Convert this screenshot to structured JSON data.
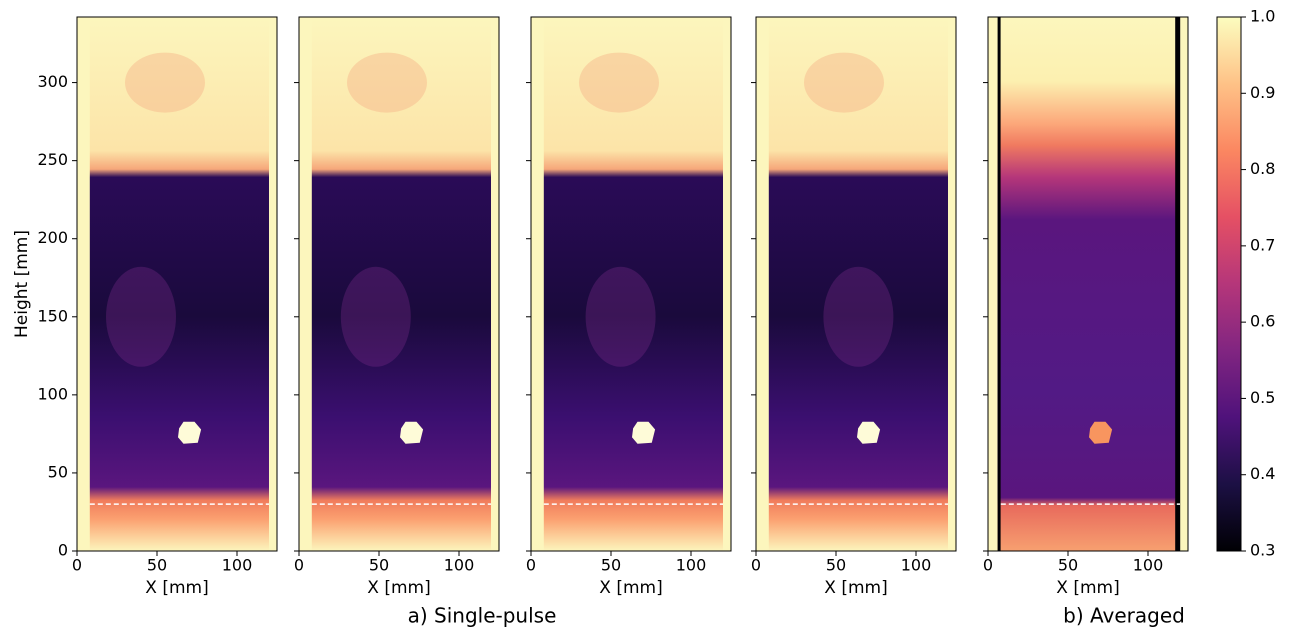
{
  "chart_data": [
    {
      "type": "heatmap",
      "ylabel": "Height [mm]",
      "xlabel": "X [mm]",
      "xlim": [
        0,
        125
      ],
      "xticks": [
        0,
        50,
        100
      ],
      "ylim": [
        0,
        342
      ],
      "yticks": [
        0,
        50,
        100,
        150,
        200,
        250,
        300
      ],
      "hline": 30
    },
    {
      "type": "heatmap",
      "xlabel": "X [mm]",
      "xlim": [
        0,
        125
      ],
      "xticks": [
        0,
        50,
        100
      ],
      "ylim": [
        0,
        342
      ],
      "hline": 30
    },
    {
      "type": "heatmap",
      "xlabel": "X [mm]",
      "xlim": [
        0,
        125
      ],
      "xticks": [
        0,
        50,
        100
      ],
      "ylim": [
        0,
        342
      ],
      "hline": 30
    },
    {
      "type": "heatmap",
      "xlabel": "X [mm]",
      "xlim": [
        0,
        125
      ],
      "xticks": [
        0,
        50,
        100
      ],
      "ylim": [
        0,
        342
      ],
      "hline": 30
    },
    {
      "type": "heatmap-averaged",
      "xlabel": "X [mm]",
      "xlim": [
        0,
        125
      ],
      "xticks": [
        0,
        50,
        100
      ],
      "ylim": [
        0,
        342
      ],
      "hline": 30
    },
    {
      "type": "colorbar",
      "ylim": [
        0.3,
        1.0
      ],
      "yticks": [
        0.3,
        0.4,
        0.5,
        0.6,
        0.7,
        0.8,
        0.9,
        {
          "value": 1.0,
          "label": "1.0"
        }
      ]
    }
  ],
  "captions": [
    "a) Single-pulse",
    "b) Averaged"
  ]
}
